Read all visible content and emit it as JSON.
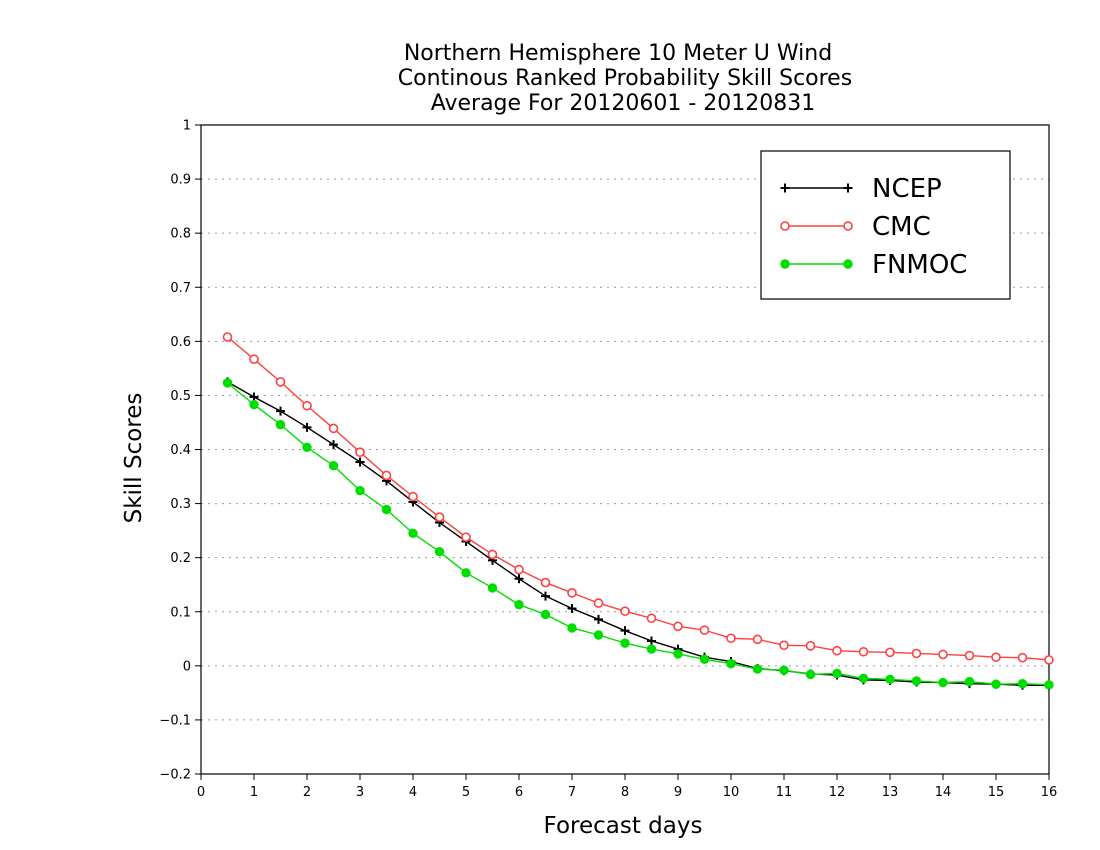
{
  "chart_data": {
    "type": "line",
    "title": [
      "Northern Hemisphere 10 Meter U Wind",
      "Continous Ranked Probability Skill Scores",
      "Average For 20120601 - 20120831"
    ],
    "xlabel": "Forecast days",
    "ylabel": "Skill Scores",
    "xlim": [
      0,
      16
    ],
    "ylim": [
      -0.2,
      1
    ],
    "x_ticks": [
      "0",
      "1",
      "2",
      "3",
      "4",
      "5",
      "6",
      "7",
      "8",
      "9",
      "10",
      "11",
      "12",
      "13",
      "14",
      "15",
      "16"
    ],
    "y_ticks": [
      "−0.2",
      "−0.1",
      "0",
      "0.1",
      "0.2",
      "0.3",
      "0.4",
      "0.5",
      "0.6",
      "0.7",
      "0.8",
      "0.9",
      "1"
    ],
    "grid": "horizontal-dotted",
    "legend_position": "top-right",
    "x": [
      0.5,
      1,
      1.5,
      2,
      2.5,
      3,
      3.5,
      4,
      4.5,
      5,
      5.5,
      6,
      6.5,
      7,
      7.5,
      8,
      8.5,
      9,
      9.5,
      10,
      10.5,
      11,
      11.5,
      12,
      12.5,
      13,
      13.5,
      14,
      14.5,
      15,
      15.5,
      16
    ],
    "series": [
      {
        "name": "NCEP",
        "color": "#000000",
        "marker": "plus",
        "values": [
          0.525,
          0.497,
          0.471,
          0.441,
          0.409,
          0.377,
          0.342,
          0.303,
          0.265,
          0.23,
          0.195,
          0.161,
          0.129,
          0.106,
          0.086,
          0.065,
          0.046,
          0.031,
          0.016,
          0.008,
          -0.005,
          -0.009,
          -0.015,
          -0.017,
          -0.026,
          -0.027,
          -0.03,
          -0.031,
          -0.033,
          -0.034,
          -0.036,
          -0.036
        ]
      },
      {
        "name": "CMC",
        "color": "#ff4040",
        "marker": "open-circle",
        "values": [
          0.608,
          0.567,
          0.525,
          0.481,
          0.439,
          0.395,
          0.352,
          0.313,
          0.275,
          0.238,
          0.206,
          0.178,
          0.154,
          0.135,
          0.116,
          0.101,
          0.088,
          0.073,
          0.066,
          0.051,
          0.049,
          0.038,
          0.037,
          0.028,
          0.026,
          0.025,
          0.023,
          0.021,
          0.019,
          0.016,
          0.015,
          0.011
        ]
      },
      {
        "name": "FNMOC",
        "color": "#00dd00",
        "marker": "filled-circle",
        "values": [
          0.523,
          0.483,
          0.446,
          0.404,
          0.37,
          0.324,
          0.289,
          0.245,
          0.211,
          0.172,
          0.144,
          0.113,
          0.095,
          0.07,
          0.057,
          0.042,
          0.031,
          0.022,
          0.012,
          0.004,
          -0.006,
          -0.008,
          -0.016,
          -0.014,
          -0.023,
          -0.025,
          -0.028,
          -0.031,
          -0.029,
          -0.034,
          -0.033,
          -0.035
        ]
      }
    ]
  }
}
